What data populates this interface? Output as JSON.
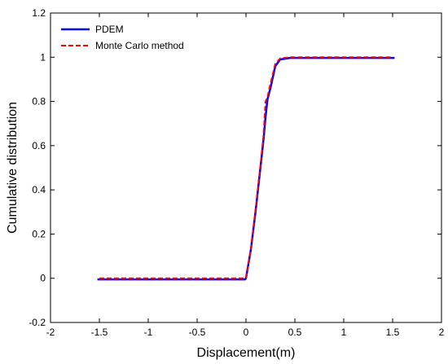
{
  "chart_data": {
    "type": "line",
    "title": "",
    "xlabel": "Displacement(m)",
    "ylabel": "Cumulative distribution",
    "xlim": [
      -2,
      2
    ],
    "ylim": [
      -0.2,
      1.2
    ],
    "xticks": [
      -2,
      -1.5,
      -1,
      -0.5,
      0,
      0.5,
      1,
      1.5,
      2
    ],
    "xtick_labels": [
      "-2",
      "-1.5",
      "-1",
      "-0.5",
      "0",
      "0.5",
      "1",
      "1.5",
      "2"
    ],
    "yticks": [
      -0.2,
      0,
      0.2,
      0.4,
      0.6,
      0.8,
      1,
      1.2
    ],
    "ytick_labels": [
      "-0.2",
      "0",
      "0.2",
      "0.4",
      "0.6",
      "0.8",
      "1",
      "1.2"
    ],
    "grid": false,
    "legend_position": "top-left",
    "series": [
      {
        "name": "PDEM",
        "color": "#0000ff",
        "style": "solid",
        "x": [
          -1.52,
          -0.01,
          0.0,
          0.05,
          0.1,
          0.15,
          0.18,
          0.2,
          0.22,
          0.25,
          0.3,
          0.35,
          0.45,
          1.52
        ],
        "y": [
          -0.005,
          -0.005,
          0.0,
          0.13,
          0.31,
          0.51,
          0.63,
          0.73,
          0.81,
          0.86,
          0.96,
          0.99,
          0.997,
          0.997
        ]
      },
      {
        "name": "Monte Carlo method",
        "color": "#ff0000",
        "style": "dashed",
        "x": [
          -1.5,
          -0.01,
          0.0,
          0.05,
          0.1,
          0.15,
          0.18,
          0.2,
          0.22,
          0.25,
          0.3,
          0.35,
          0.45,
          1.5
        ],
        "y": [
          0.0,
          0.0,
          0.0,
          0.13,
          0.32,
          0.52,
          0.65,
          0.8,
          0.82,
          0.88,
          0.97,
          0.995,
          1.0,
          1.0
        ]
      }
    ]
  }
}
